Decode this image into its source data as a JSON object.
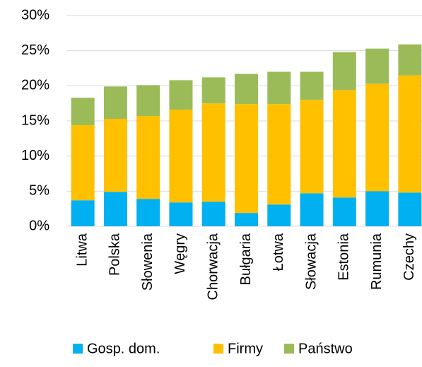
{
  "chart_data": {
    "type": "stacked_bar",
    "categories": [
      "Litwa",
      "Polska",
      "Słowenia",
      "Węgry",
      "Chorwacja",
      "Bułgaria",
      "Łotwa",
      "Słowacja",
      "Estonia",
      "Rumunia",
      "Czechy"
    ],
    "series": [
      {
        "name": "Gosp. dom.",
        "color": "#00b0f0",
        "values": [
          3.7,
          4.9,
          3.9,
          3.4,
          3.5,
          1.9,
          3.1,
          4.7,
          4.1,
          5.0,
          4.8
        ]
      },
      {
        "name": "Firmy",
        "color": "#ffc000",
        "values": [
          10.7,
          10.4,
          11.8,
          13.2,
          14.0,
          15.5,
          14.3,
          13.3,
          15.3,
          15.3,
          16.7
        ]
      },
      {
        "name": "Państwo",
        "color": "#9bbb59",
        "values": [
          3.9,
          4.6,
          4.4,
          4.2,
          3.7,
          4.3,
          4.6,
          4.0,
          5.4,
          5.0,
          4.4
        ]
      }
    ],
    "ylim": [
      0,
      30
    ],
    "yticks": [
      {
        "value": 0,
        "label": "0%"
      },
      {
        "value": 5,
        "label": "5%"
      },
      {
        "value": 10,
        "label": "10%"
      },
      {
        "value": 15,
        "label": "15%"
      },
      {
        "value": 20,
        "label": "20%"
      },
      {
        "value": 25,
        "label": "25%"
      },
      {
        "value": 30,
        "label": "30%"
      }
    ],
    "grid": true,
    "legend": "bottom"
  }
}
